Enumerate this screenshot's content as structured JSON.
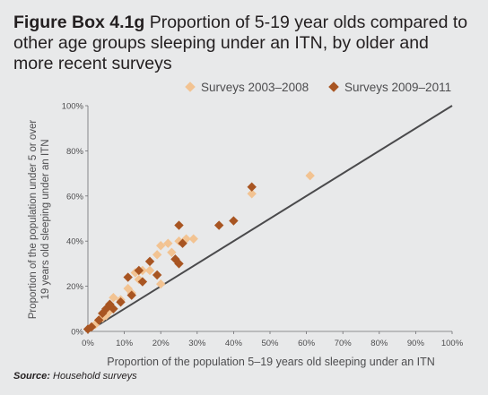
{
  "title_prefix": "Figure Box 4.1g",
  "title_text": "Proportion of 5-19 year olds compared to other age groups sleeping under an ITN, by older and more recent surveys",
  "source_label": "Source:",
  "source_text": "Household surveys",
  "colors": {
    "older": "#f2c392",
    "recent": "#a85522",
    "line": "#4a4a4c"
  },
  "chart_data": {
    "type": "scatter",
    "xlabel": "Proportion of the population 5–19 years old sleeping under an ITN",
    "ylabel_line1": "Proportion of the population under 5 or over",
    "ylabel_line2": "19 years old sleeping under an ITN",
    "xlim": [
      0,
      100
    ],
    "ylim": [
      0,
      100
    ],
    "x_ticks": [
      "0%",
      "10%",
      "20%",
      "30%",
      "40%",
      "50%",
      "60%",
      "70%",
      "80%",
      "90%",
      "100%"
    ],
    "y_ticks": [
      "0%",
      "20%",
      "40%",
      "60%",
      "80%",
      "100%"
    ],
    "legend_position": "top-right",
    "reference_line": [
      [
        0,
        0
      ],
      [
        100,
        100
      ]
    ],
    "series": [
      {
        "name": "Surveys 2003–2008",
        "points": [
          [
            1,
            2
          ],
          [
            2,
            3
          ],
          [
            3,
            5
          ],
          [
            4,
            6
          ],
          [
            5,
            7
          ],
          [
            6,
            9
          ],
          [
            7,
            15
          ],
          [
            9,
            14
          ],
          [
            11,
            19
          ],
          [
            12,
            17
          ],
          [
            13,
            26
          ],
          [
            14,
            23
          ],
          [
            15,
            27
          ],
          [
            17,
            27
          ],
          [
            19,
            34
          ],
          [
            20,
            21
          ],
          [
            20,
            38
          ],
          [
            22,
            39
          ],
          [
            23,
            35
          ],
          [
            25,
            40
          ],
          [
            27,
            41
          ],
          [
            29,
            41
          ],
          [
            45,
            61
          ],
          [
            61,
            69
          ]
        ]
      },
      {
        "name": "Surveys 2009–2011",
        "points": [
          [
            0,
            1
          ],
          [
            1,
            2
          ],
          [
            3,
            5
          ],
          [
            4,
            8
          ],
          [
            5,
            10
          ],
          [
            6,
            12
          ],
          [
            7,
            10
          ],
          [
            9,
            13
          ],
          [
            11,
            24
          ],
          [
            12,
            16
          ],
          [
            14,
            27
          ],
          [
            15,
            22
          ],
          [
            17,
            31
          ],
          [
            19,
            25
          ],
          [
            24,
            32
          ],
          [
            25,
            30
          ],
          [
            25,
            47
          ],
          [
            26,
            39
          ],
          [
            36,
            47
          ],
          [
            40,
            49
          ],
          [
            45,
            64
          ]
        ]
      }
    ]
  }
}
